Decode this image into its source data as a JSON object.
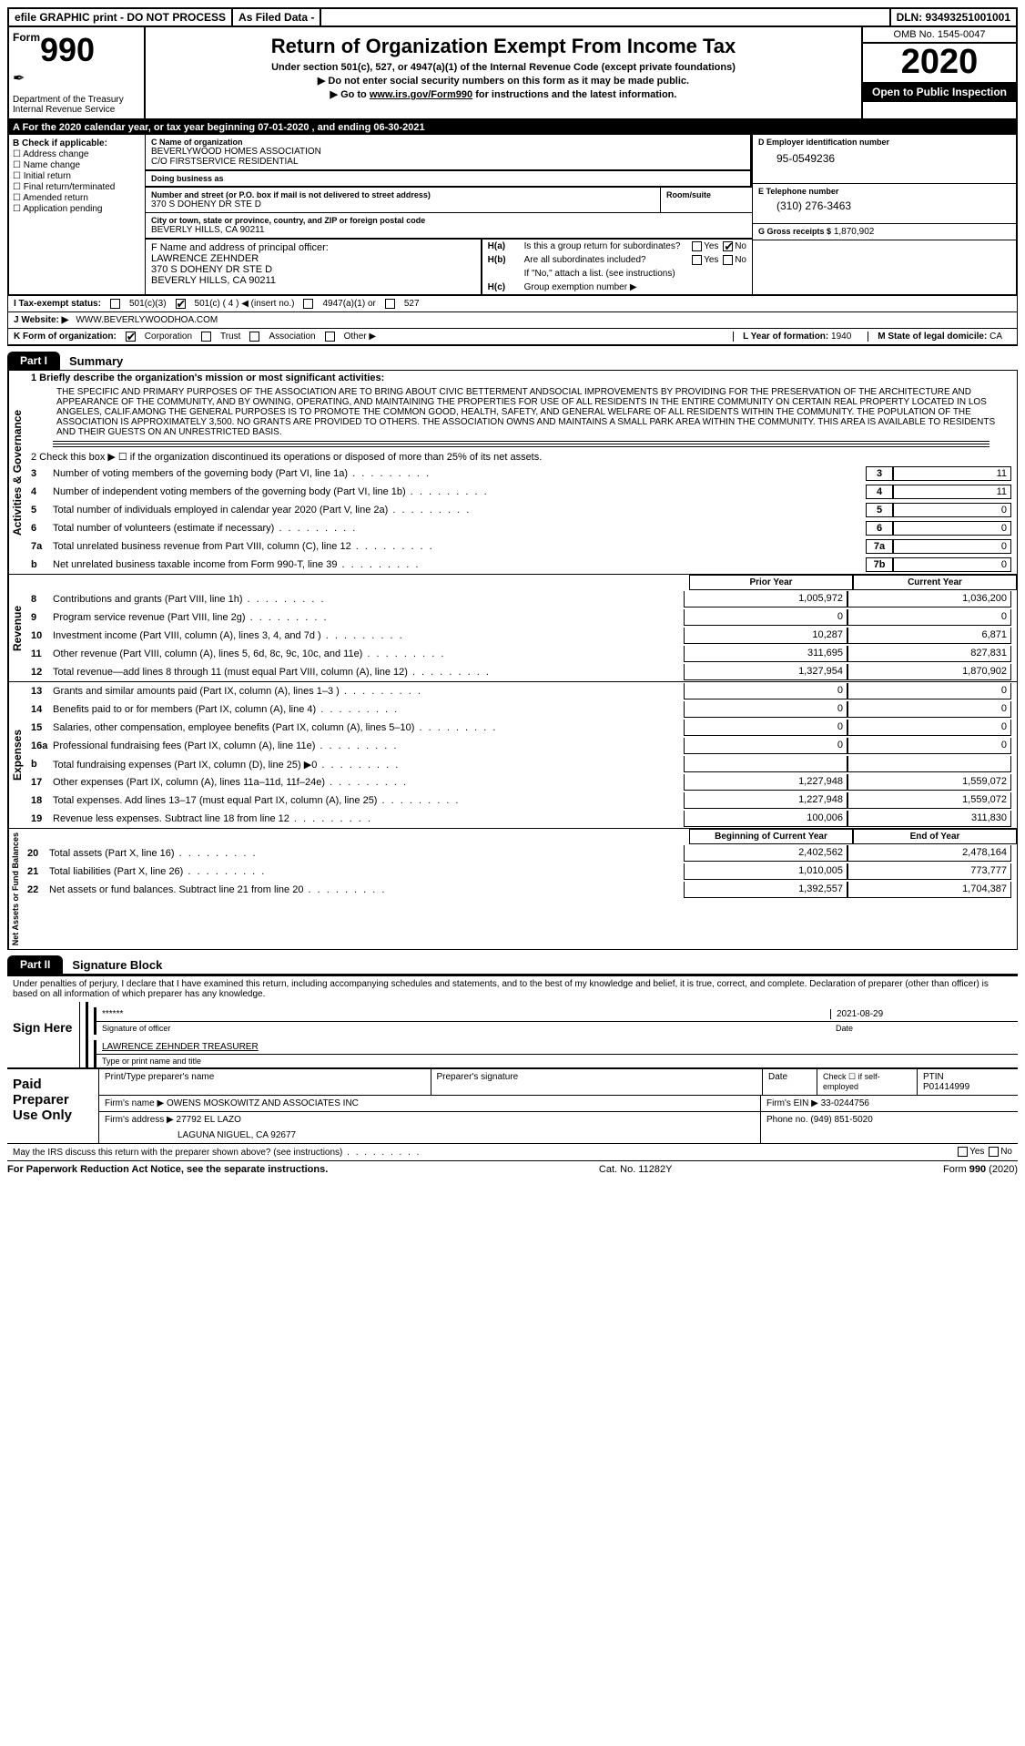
{
  "topbar": {
    "efile": "efile GRAPHIC print - DO NOT PROCESS",
    "asfiled": "As Filed Data -",
    "dln": "DLN: 93493251001001"
  },
  "header": {
    "form_prefix": "Form",
    "form_num": "990",
    "dept": "Department of the Treasury",
    "irs": "Internal Revenue Service",
    "title": "Return of Organization Exempt From Income Tax",
    "sub1": "Under section 501(c), 527, or 4947(a)(1) of the Internal Revenue Code (except private foundations)",
    "sub2": "▶ Do not enter social security numbers on this form as it may be made public.",
    "sub3_pre": "▶ Go to ",
    "sub3_link": "www.irs.gov/Form990",
    "sub3_post": " for instructions and the latest information.",
    "omb": "OMB No. 1545-0047",
    "year": "2020",
    "open": "Open to Public Inspection"
  },
  "row_a": "A   For the 2020 calendar year, or tax year beginning 07-01-2020   , and ending 06-30-2021",
  "col_b": {
    "title": "B Check if applicable:",
    "items": [
      "Address change",
      "Name change",
      "Initial return",
      "Final return/terminated",
      "Amended return",
      "Application pending"
    ]
  },
  "col_c": {
    "name_lbl": "C Name of organization",
    "name": "BEVERLYWOOD HOMES ASSOCIATION",
    "co": "C/O FIRSTSERVICE RESIDENTIAL",
    "dba_lbl": "Doing business as",
    "dba": "",
    "street_lbl": "Number and street (or P.O. box if mail is not delivered to street address)",
    "room_lbl": "Room/suite",
    "street": "370 S DOHENY DR STE D",
    "city_lbl": "City or town, state or province, country, and ZIP or foreign postal code",
    "city": "BEVERLY HILLS, CA  90211"
  },
  "col_d": {
    "ein_lbl": "D Employer identification number",
    "ein": "95-0549236",
    "tel_lbl": "E Telephone number",
    "tel": "(310) 276-3463",
    "gross_lbl": "G Gross receipts $",
    "gross": "1,870,902"
  },
  "col_f": {
    "lbl": "F  Name and address of principal officer:",
    "name": "LAWRENCE ZEHNDER",
    "addr1": "370 S DOHENY DR STE D",
    "addr2": "BEVERLY HILLS, CA  90211"
  },
  "col_h": {
    "a_lbl": "H(a)",
    "a_txt": "Is this a group return for subordinates?",
    "b_lbl": "H(b)",
    "b_txt": "Are all subordinates included?",
    "note": "If \"No,\" attach a list. (see instructions)",
    "c_lbl": "H(c)",
    "c_txt": "Group exemption number ▶",
    "yes": "Yes",
    "no": "No"
  },
  "row_i": {
    "lbl": "I   Tax-exempt status:",
    "o1": "501(c)(3)",
    "o2": "501(c) ( 4 ) ◀ (insert no.)",
    "o3": "4947(a)(1) or",
    "o4": "527"
  },
  "row_j": {
    "lbl": "J   Website: ▶",
    "val": "WWW.BEVERLYWOODHOA.COM"
  },
  "row_k": {
    "lbl": "K Form of organization:",
    "o1": "Corporation",
    "o2": "Trust",
    "o3": "Association",
    "o4": "Other ▶",
    "l_lbl": "L Year of formation:",
    "l_val": "1940",
    "m_lbl": "M State of legal domicile:",
    "m_val": "CA"
  },
  "part1": {
    "tab": "Part I",
    "title": "Summary"
  },
  "gov": {
    "label": "Activities & Governance",
    "l1_lbl": "1   Briefly describe the organization's mission or most significant activities:",
    "mission": "THE SPECIFIC AND PRIMARY PURPOSES OF THE ASSOCIATION ARE TO BRING ABOUT CIVIC BETTERMENT ANDSOCIAL IMPROVEMENTS BY PROVIDING FOR THE PRESERVATION OF THE ARCHITECTURE AND APPEARANCE OF THE COMMUNITY, AND BY OWNING, OPERATING, AND MAINTAINING THE PROPERTIES FOR USE OF ALL RESIDENTS IN THE ENTIRE COMMUNITY ON CERTAIN REAL PROPERTY LOCATED IN LOS ANGELES, CALIF.AMONG THE GENERAL PURPOSES IS TO PROMOTE THE COMMON GOOD, HEALTH, SAFETY, AND GENERAL WELFARE OF ALL RESIDENTS WITHIN THE COMMUNITY. THE POPULATION OF THE ASSOCIATION IS APPROXIMATELY 3,500. NO GRANTS ARE PROVIDED TO OTHERS. THE ASSOCIATION OWNS AND MAINTAINS A SMALL PARK AREA WITHIN THE COMMUNITY. THIS AREA IS AVAILABLE TO RESIDENTS AND THEIR GUESTS ON AN UNRESTRICTED BASIS.",
    "l2": "2   Check this box ▶ ☐ if the organization discontinued its operations or disposed of more than 25% of its net assets.",
    "lines": [
      {
        "n": "3",
        "t": "Number of voting members of the governing body (Part VI, line 1a)",
        "k": "3",
        "v": "11"
      },
      {
        "n": "4",
        "t": "Number of independent voting members of the governing body (Part VI, line 1b)",
        "k": "4",
        "v": "11"
      },
      {
        "n": "5",
        "t": "Total number of individuals employed in calendar year 2020 (Part V, line 2a)",
        "k": "5",
        "v": "0"
      },
      {
        "n": "6",
        "t": "Total number of volunteers (estimate if necessary)",
        "k": "6",
        "v": "0"
      },
      {
        "n": "7a",
        "t": "Total unrelated business revenue from Part VIII, column (C), line 12",
        "k": "7a",
        "v": "0"
      },
      {
        "n": "b",
        "t": "Net unrelated business taxable income from Form 990-T, line 39",
        "k": "7b",
        "v": "0"
      }
    ]
  },
  "rev": {
    "label": "Revenue",
    "hdr1": "Prior Year",
    "hdr2": "Current Year",
    "lines": [
      {
        "n": "8",
        "t": "Contributions and grants (Part VIII, line 1h)",
        "p": "1,005,972",
        "c": "1,036,200"
      },
      {
        "n": "9",
        "t": "Program service revenue (Part VIII, line 2g)",
        "p": "0",
        "c": "0"
      },
      {
        "n": "10",
        "t": "Investment income (Part VIII, column (A), lines 3, 4, and 7d )",
        "p": "10,287",
        "c": "6,871"
      },
      {
        "n": "11",
        "t": "Other revenue (Part VIII, column (A), lines 5, 6d, 8c, 9c, 10c, and 11e)",
        "p": "311,695",
        "c": "827,831"
      },
      {
        "n": "12",
        "t": "Total revenue—add lines 8 through 11 (must equal Part VIII, column (A), line 12)",
        "p": "1,327,954",
        "c": "1,870,902"
      }
    ]
  },
  "exp": {
    "label": "Expenses",
    "lines": [
      {
        "n": "13",
        "t": "Grants and similar amounts paid (Part IX, column (A), lines 1–3 )",
        "p": "0",
        "c": "0"
      },
      {
        "n": "14",
        "t": "Benefits paid to or for members (Part IX, column (A), line 4)",
        "p": "0",
        "c": "0"
      },
      {
        "n": "15",
        "t": "Salaries, other compensation, employee benefits (Part IX, column (A), lines 5–10)",
        "p": "0",
        "c": "0"
      },
      {
        "n": "16a",
        "t": "Professional fundraising fees (Part IX, column (A), line 11e)",
        "p": "0",
        "c": "0"
      },
      {
        "n": "b",
        "t": "Total fundraising expenses (Part IX, column (D), line 25) ▶0",
        "p": "",
        "c": ""
      },
      {
        "n": "17",
        "t": "Other expenses (Part IX, column (A), lines 11a–11d, 11f–24e)",
        "p": "1,227,948",
        "c": "1,559,072"
      },
      {
        "n": "18",
        "t": "Total expenses. Add lines 13–17 (must equal Part IX, column (A), line 25)",
        "p": "1,227,948",
        "c": "1,559,072"
      },
      {
        "n": "19",
        "t": "Revenue less expenses. Subtract line 18 from line 12",
        "p": "100,006",
        "c": "311,830"
      }
    ]
  },
  "net": {
    "label": "Net Assets or Fund Balances",
    "hdr1": "Beginning of Current Year",
    "hdr2": "End of Year",
    "lines": [
      {
        "n": "20",
        "t": "Total assets (Part X, line 16)",
        "p": "2,402,562",
        "c": "2,478,164"
      },
      {
        "n": "21",
        "t": "Total liabilities (Part X, line 26)",
        "p": "1,010,005",
        "c": "773,777"
      },
      {
        "n": "22",
        "t": "Net assets or fund balances. Subtract line 21 from line 20",
        "p": "1,392,557",
        "c": "1,704,387"
      }
    ]
  },
  "part2": {
    "tab": "Part II",
    "title": "Signature Block"
  },
  "sig": {
    "decl": "Under penalties of perjury, I declare that I have examined this return, including accompanying schedules and statements, and to the best of my knowledge and belief, it is true, correct, and complete. Declaration of preparer (other than officer) is based on all information of which preparer has any knowledge.",
    "sign_here": "Sign Here",
    "stars": "******",
    "date": "2021-08-29",
    "sig_of": "Signature of officer",
    "date_lbl": "Date",
    "name": "LAWRENCE ZEHNDER TREASURER",
    "name_lbl": "Type or print name and title"
  },
  "prep": {
    "title": "Paid Preparer Use Only",
    "h1": "Print/Type preparer's name",
    "h2": "Preparer's signature",
    "h3": "Date",
    "h4_pre": "Check ☐ if self-employed",
    "h5": "PTIN",
    "ptin": "P01414999",
    "firm_lbl": "Firm's name   ▶",
    "firm": "OWENS MOSKOWITZ AND ASSOCIATES INC",
    "ein_lbl": "Firm's EIN ▶",
    "ein": "33-0244756",
    "addr_lbl": "Firm's address ▶",
    "addr1": "27792 EL LAZO",
    "addr2": "LAGUNA NIGUEL, CA  92677",
    "phone_lbl": "Phone no.",
    "phone": "(949) 851-5020"
  },
  "discuss": {
    "txt": "May the IRS discuss this return with the preparer shown above? (see instructions)",
    "yes": "Yes",
    "no": "No"
  },
  "footer": {
    "left": "For Paperwork Reduction Act Notice, see the separate instructions.",
    "mid": "Cat. No. 11282Y",
    "right_pre": "Form ",
    "right_bold": "990",
    "right_post": " (2020)"
  }
}
